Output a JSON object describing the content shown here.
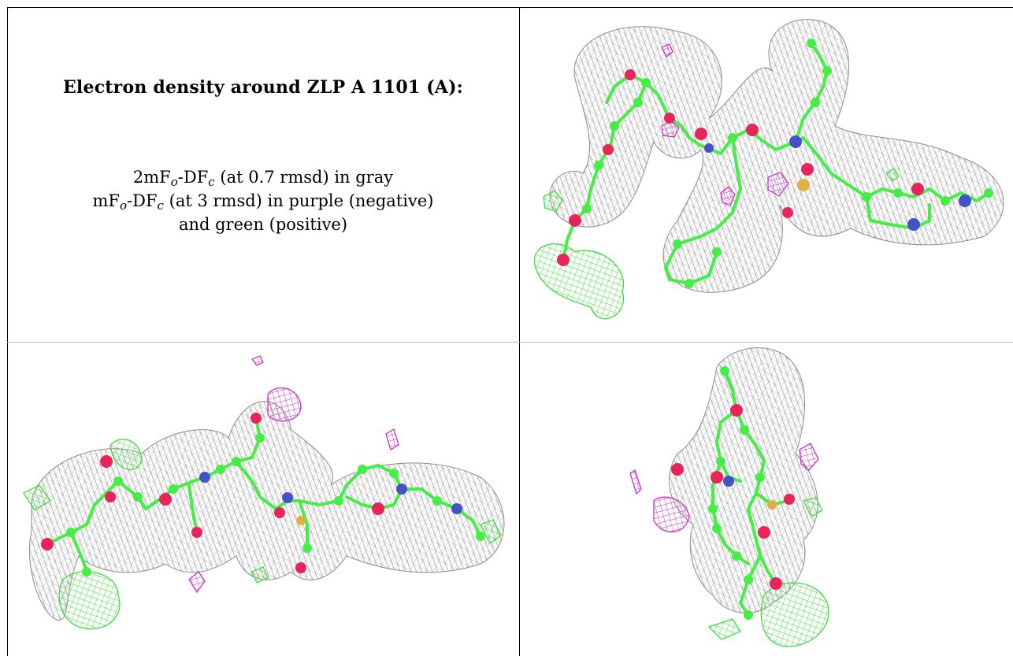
{
  "caption": {
    "title": "Electron density around ZLP A 1101 (A):",
    "line1_prefix": "2mF",
    "line1_sub_o": "o",
    "line1_mid": "-DF",
    "line1_sub_c": "c",
    "line1_suffix": " (at 0.7 rmsd) in gray",
    "line2_prefix": "mF",
    "line2_sub_o": "o",
    "line2_mid": "-DF",
    "line2_sub_c": "c",
    "line2_suffix": " (at 3 rmsd) in purple (negative)",
    "line3": "and green (positive)"
  },
  "colors": {
    "map_2fofc": "#9a9a9a",
    "map_fofc_negative": "#cc22cc",
    "map_fofc_positive": "#33dd33",
    "carbon": "#44ee44",
    "oxygen": "#e8245a",
    "nitrogen": "#4452c8",
    "sulfur": "#e0b040"
  },
  "panels": [
    {
      "name": "view-1"
    },
    {
      "name": "view-2"
    },
    {
      "name": "view-3"
    }
  ]
}
